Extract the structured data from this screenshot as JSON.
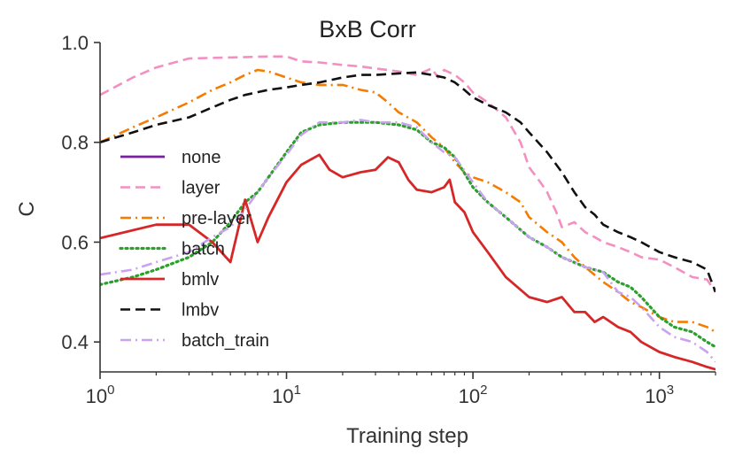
{
  "chart_data": {
    "type": "line",
    "title": "BxB Corr",
    "xlabel": "Training step",
    "ylabel": "C",
    "xscale": "log",
    "xlim": [
      1,
      2000
    ],
    "ylim": [
      0.34,
      1.0
    ],
    "x_ticks": [
      {
        "value": 1,
        "base": "10",
        "exp": "0"
      },
      {
        "value": 10,
        "base": "10",
        "exp": "1"
      },
      {
        "value": 100,
        "base": "10",
        "exp": "2"
      },
      {
        "value": 1000,
        "base": "10",
        "exp": "3"
      }
    ],
    "y_ticks": [
      {
        "value": 0.4,
        "label": "0.4"
      },
      {
        "value": 0.6,
        "label": "0.6"
      },
      {
        "value": 0.8,
        "label": "0.8"
      },
      {
        "value": 1.0,
        "label": "1.0"
      }
    ],
    "grid": false,
    "legend_position": "center-left",
    "series": [
      {
        "name": "none",
        "color": "#7b1fa2",
        "dash": "solid",
        "points": []
      },
      {
        "name": "layer",
        "color": "#f48fc1",
        "dash": "dashed",
        "points": [
          [
            1,
            0.895
          ],
          [
            1.5,
            0.93
          ],
          [
            2,
            0.95
          ],
          [
            3,
            0.968
          ],
          [
            5,
            0.97
          ],
          [
            8,
            0.972
          ],
          [
            10,
            0.972
          ],
          [
            12,
            0.962
          ],
          [
            15,
            0.96
          ],
          [
            20,
            0.955
          ],
          [
            25,
            0.952
          ],
          [
            30,
            0.948
          ],
          [
            40,
            0.942
          ],
          [
            50,
            0.935
          ],
          [
            60,
            0.948
          ],
          [
            65,
            0.93
          ],
          [
            70,
            0.945
          ],
          [
            80,
            0.935
          ],
          [
            90,
            0.92
          ],
          [
            100,
            0.9
          ],
          [
            120,
            0.88
          ],
          [
            150,
            0.85
          ],
          [
            180,
            0.8
          ],
          [
            200,
            0.75
          ],
          [
            230,
            0.72
          ],
          [
            250,
            0.7
          ],
          [
            280,
            0.66
          ],
          [
            300,
            0.63
          ],
          [
            350,
            0.64
          ],
          [
            400,
            0.62
          ],
          [
            450,
            0.61
          ],
          [
            500,
            0.6
          ],
          [
            600,
            0.59
          ],
          [
            700,
            0.58
          ],
          [
            800,
            0.57
          ],
          [
            1000,
            0.565
          ],
          [
            1200,
            0.55
          ],
          [
            1500,
            0.53
          ],
          [
            1800,
            0.525
          ],
          [
            2000,
            0.5
          ]
        ]
      },
      {
        "name": "pre-layer",
        "color": "#f57c00",
        "dash": "dashdot",
        "points": [
          [
            1,
            0.8
          ],
          [
            1.5,
            0.83
          ],
          [
            2,
            0.85
          ],
          [
            3,
            0.88
          ],
          [
            4,
            0.905
          ],
          [
            5,
            0.92
          ],
          [
            6,
            0.935
          ],
          [
            7,
            0.945
          ],
          [
            8,
            0.942
          ],
          [
            10,
            0.93
          ],
          [
            12,
            0.92
          ],
          [
            15,
            0.915
          ],
          [
            20,
            0.915
          ],
          [
            25,
            0.905
          ],
          [
            30,
            0.9
          ],
          [
            35,
            0.88
          ],
          [
            40,
            0.86
          ],
          [
            50,
            0.84
          ],
          [
            60,
            0.81
          ],
          [
            70,
            0.79
          ],
          [
            80,
            0.76
          ],
          [
            90,
            0.74
          ],
          [
            100,
            0.73
          ],
          [
            120,
            0.72
          ],
          [
            150,
            0.7
          ],
          [
            180,
            0.68
          ],
          [
            200,
            0.65
          ],
          [
            250,
            0.62
          ],
          [
            300,
            0.6
          ],
          [
            350,
            0.57
          ],
          [
            400,
            0.55
          ],
          [
            500,
            0.52
          ],
          [
            600,
            0.5
          ],
          [
            700,
            0.48
          ],
          [
            800,
            0.47
          ],
          [
            1000,
            0.45
          ],
          [
            1200,
            0.44
          ],
          [
            1500,
            0.44
          ],
          [
            1800,
            0.43
          ],
          [
            2000,
            0.42
          ]
        ]
      },
      {
        "name": "batch",
        "color": "#2ca02c",
        "dash": "dotted",
        "points": [
          [
            1,
            0.515
          ],
          [
            1.5,
            0.53
          ],
          [
            2,
            0.545
          ],
          [
            3,
            0.57
          ],
          [
            4,
            0.6
          ],
          [
            5,
            0.64
          ],
          [
            6,
            0.68
          ],
          [
            7,
            0.7
          ],
          [
            8,
            0.73
          ],
          [
            10,
            0.78
          ],
          [
            12,
            0.82
          ],
          [
            15,
            0.835
          ],
          [
            20,
            0.84
          ],
          [
            30,
            0.84
          ],
          [
            40,
            0.835
          ],
          [
            50,
            0.825
          ],
          [
            60,
            0.8
          ],
          [
            70,
            0.79
          ],
          [
            80,
            0.77
          ],
          [
            100,
            0.71
          ],
          [
            120,
            0.68
          ],
          [
            150,
            0.65
          ],
          [
            200,
            0.61
          ],
          [
            250,
            0.59
          ],
          [
            300,
            0.57
          ],
          [
            400,
            0.55
          ],
          [
            500,
            0.54
          ],
          [
            600,
            0.52
          ],
          [
            700,
            0.51
          ],
          [
            800,
            0.49
          ],
          [
            1000,
            0.45
          ],
          [
            1200,
            0.43
          ],
          [
            1500,
            0.42
          ],
          [
            1800,
            0.4
          ],
          [
            2000,
            0.39
          ]
        ]
      },
      {
        "name": "bmlv",
        "color": "#d62728",
        "dash": "solid",
        "points": [
          [
            1,
            0.608
          ],
          [
            2,
            0.635
          ],
          [
            3,
            0.635
          ],
          [
            4,
            0.6
          ],
          [
            5,
            0.56
          ],
          [
            6,
            0.685
          ],
          [
            7,
            0.6
          ],
          [
            8,
            0.65
          ],
          [
            10,
            0.72
          ],
          [
            12,
            0.755
          ],
          [
            15,
            0.775
          ],
          [
            17,
            0.745
          ],
          [
            20,
            0.73
          ],
          [
            25,
            0.74
          ],
          [
            30,
            0.745
          ],
          [
            35,
            0.77
          ],
          [
            40,
            0.76
          ],
          [
            45,
            0.725
          ],
          [
            50,
            0.705
          ],
          [
            60,
            0.7
          ],
          [
            70,
            0.71
          ],
          [
            75,
            0.725
          ],
          [
            80,
            0.68
          ],
          [
            90,
            0.66
          ],
          [
            100,
            0.62
          ],
          [
            120,
            0.58
          ],
          [
            150,
            0.53
          ],
          [
            200,
            0.49
          ],
          [
            250,
            0.48
          ],
          [
            300,
            0.49
          ],
          [
            350,
            0.46
          ],
          [
            400,
            0.46
          ],
          [
            450,
            0.44
          ],
          [
            500,
            0.45
          ],
          [
            600,
            0.43
          ],
          [
            700,
            0.42
          ],
          [
            800,
            0.4
          ],
          [
            1000,
            0.38
          ],
          [
            1200,
            0.37
          ],
          [
            1500,
            0.36
          ],
          [
            1800,
            0.35
          ],
          [
            2000,
            0.345
          ]
        ]
      },
      {
        "name": "lmbv",
        "color": "#111111",
        "dash": "dashed",
        "points": [
          [
            1,
            0.8
          ],
          [
            1.5,
            0.82
          ],
          [
            2,
            0.835
          ],
          [
            3,
            0.85
          ],
          [
            4,
            0.87
          ],
          [
            5,
            0.885
          ],
          [
            6,
            0.895
          ],
          [
            8,
            0.905
          ],
          [
            10,
            0.91
          ],
          [
            12,
            0.915
          ],
          [
            15,
            0.92
          ],
          [
            20,
            0.93
          ],
          [
            25,
            0.935
          ],
          [
            30,
            0.935
          ],
          [
            40,
            0.938
          ],
          [
            50,
            0.94
          ],
          [
            60,
            0.935
          ],
          [
            70,
            0.93
          ],
          [
            80,
            0.92
          ],
          [
            90,
            0.905
          ],
          [
            100,
            0.89
          ],
          [
            120,
            0.875
          ],
          [
            150,
            0.86
          ],
          [
            180,
            0.84
          ],
          [
            200,
            0.82
          ],
          [
            250,
            0.78
          ],
          [
            300,
            0.74
          ],
          [
            350,
            0.7
          ],
          [
            400,
            0.67
          ],
          [
            450,
            0.655
          ],
          [
            500,
            0.635
          ],
          [
            600,
            0.62
          ],
          [
            700,
            0.61
          ],
          [
            800,
            0.6
          ],
          [
            1000,
            0.58
          ],
          [
            1200,
            0.57
          ],
          [
            1500,
            0.56
          ],
          [
            1800,
            0.545
          ],
          [
            2000,
            0.5
          ]
        ]
      },
      {
        "name": "batch_train",
        "color": "#c9a2f0",
        "dash": "dashdot",
        "points": [
          [
            1,
            0.535
          ],
          [
            1.5,
            0.545
          ],
          [
            2,
            0.56
          ],
          [
            3,
            0.58
          ],
          [
            4,
            0.61
          ],
          [
            5,
            0.63
          ],
          [
            6,
            0.665
          ],
          [
            7,
            0.7
          ],
          [
            8,
            0.73
          ],
          [
            10,
            0.775
          ],
          [
            12,
            0.815
          ],
          [
            15,
            0.84
          ],
          [
            20,
            0.84
          ],
          [
            25,
            0.845
          ],
          [
            30,
            0.84
          ],
          [
            40,
            0.84
          ],
          [
            50,
            0.83
          ],
          [
            60,
            0.8
          ],
          [
            70,
            0.78
          ],
          [
            80,
            0.77
          ],
          [
            100,
            0.72
          ],
          [
            120,
            0.68
          ],
          [
            150,
            0.65
          ],
          [
            200,
            0.61
          ],
          [
            250,
            0.59
          ],
          [
            300,
            0.57
          ],
          [
            400,
            0.55
          ],
          [
            500,
            0.54
          ],
          [
            600,
            0.5
          ],
          [
            700,
            0.49
          ],
          [
            800,
            0.47
          ],
          [
            1000,
            0.43
          ],
          [
            1200,
            0.41
          ],
          [
            1500,
            0.4
          ],
          [
            1800,
            0.38
          ],
          [
            2000,
            0.36
          ]
        ]
      }
    ]
  }
}
